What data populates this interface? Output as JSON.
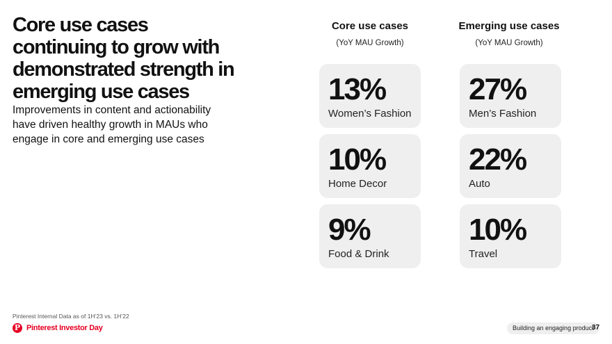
{
  "title": "Core use cases continuing to grow with demonstrated strength in emerging use cases",
  "subtitle": "Improvements in content and actionability have driven healthy growth in MAUs who engage in core and emerging use cases",
  "columns": [
    {
      "heading": "Core use cases",
      "subheading": "(YoY MAU Growth)",
      "cards": [
        {
          "value": "13%",
          "label": "Women’s Fashion"
        },
        {
          "value": "10%",
          "label": "Home Decor"
        },
        {
          "value": "9%",
          "label": "Food & Drink"
        }
      ]
    },
    {
      "heading": "Emerging use cases",
      "subheading": "(YoY MAU Growth)",
      "cards": [
        {
          "value": "27%",
          "label": "Men’s Fashion"
        },
        {
          "value": "22%",
          "label": "Auto"
        },
        {
          "value": "10%",
          "label": "Travel"
        }
      ]
    }
  ],
  "footer": {
    "source_note": "Pinterest Internal Data as of 1H’23 vs. 1H’22",
    "brand": "Pinterest Investor Day",
    "logo_letter": "P",
    "section": "Building an engaging product",
    "page_number": "37"
  },
  "colors": {
    "brand_red": "#e60023",
    "card_bg": "#efefef",
    "text": "#111111"
  }
}
